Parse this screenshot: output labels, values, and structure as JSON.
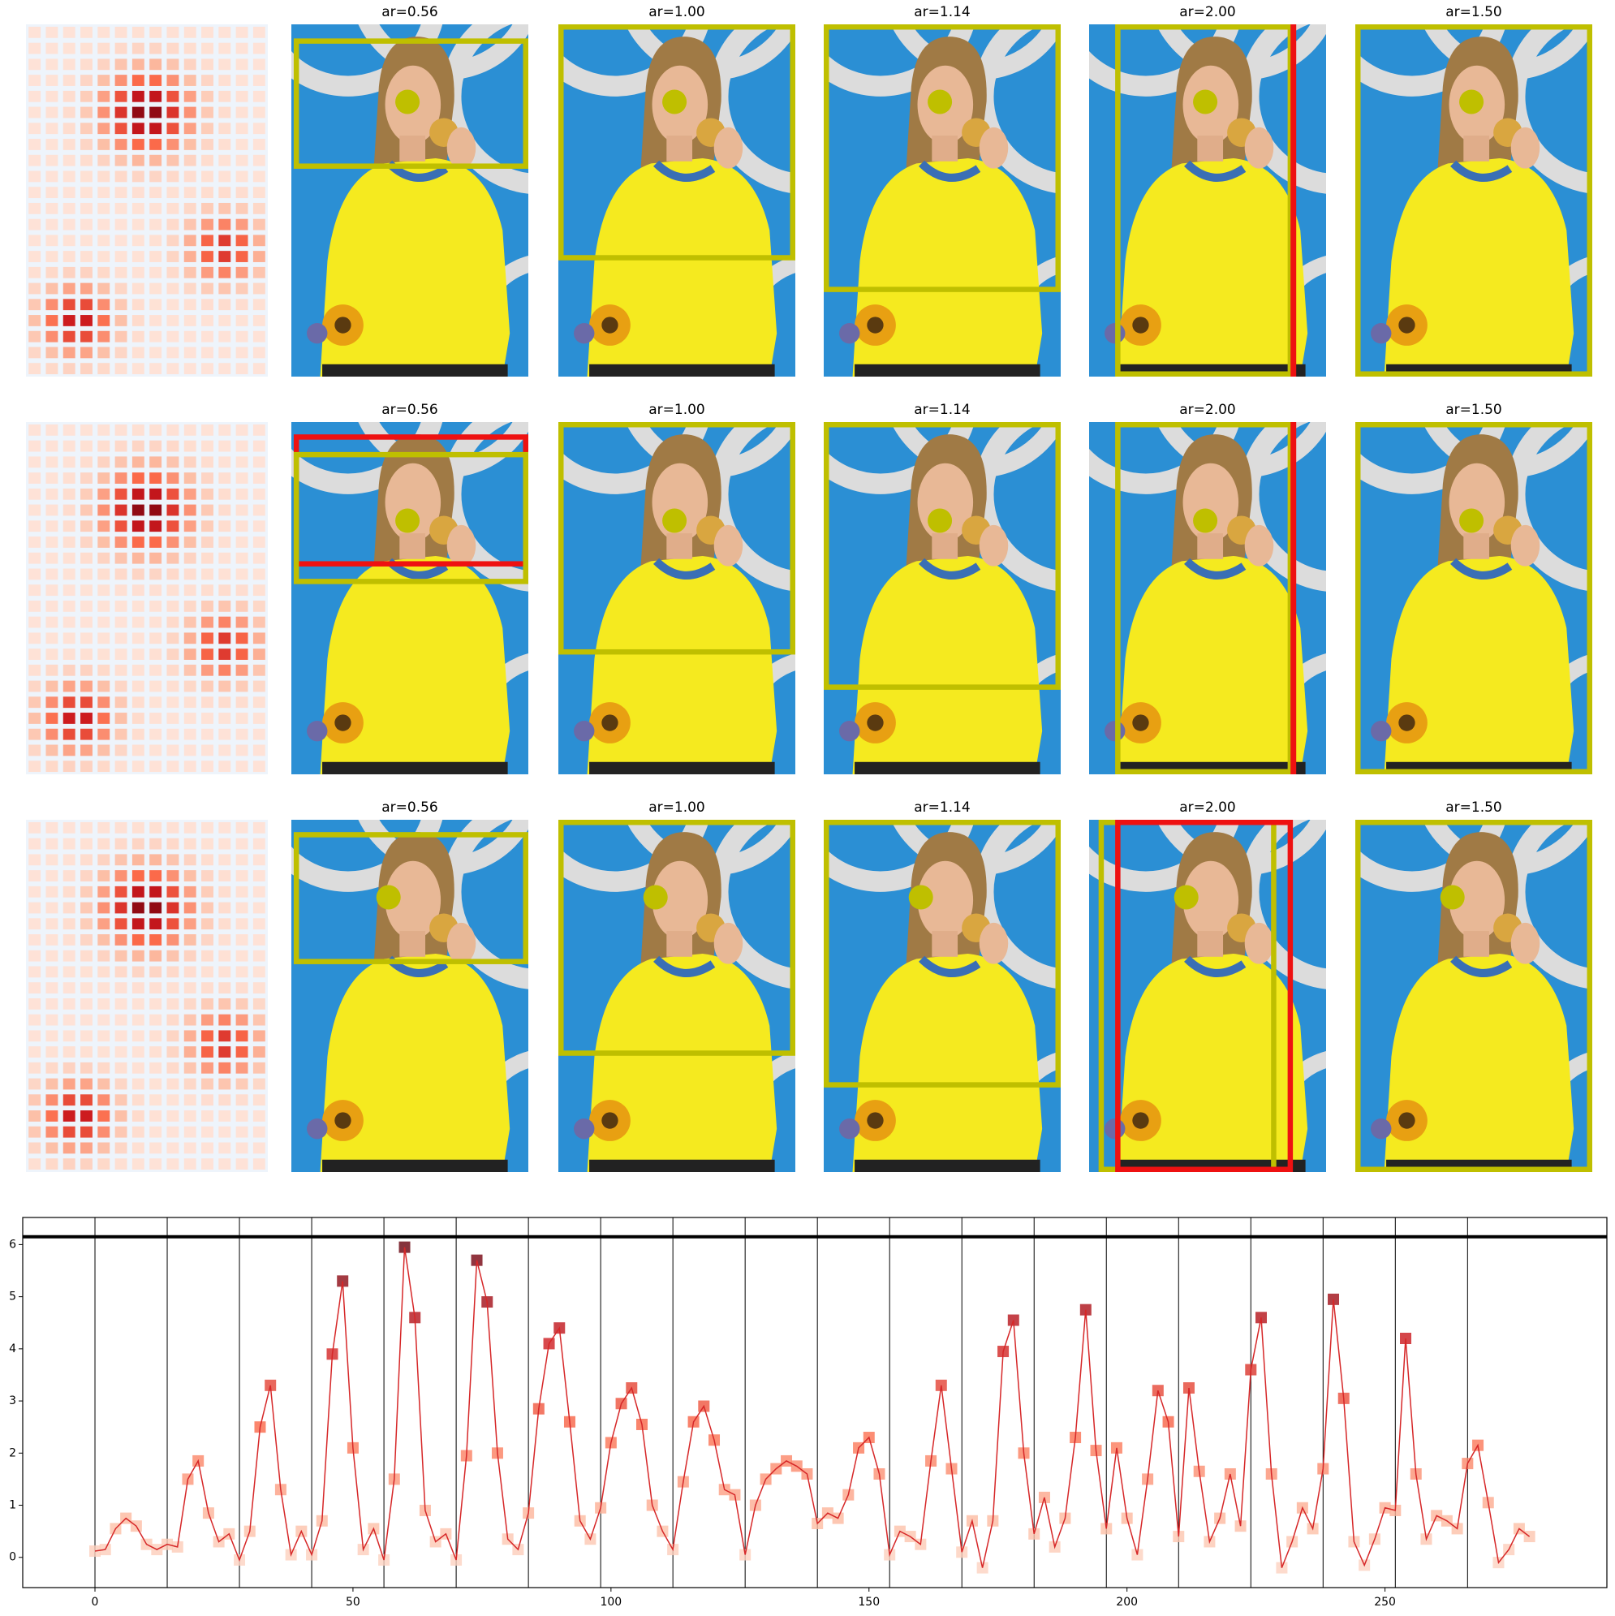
{
  "grid": {
    "rows": [
      {
        "titles": [
          "ar=0.56",
          "ar=1.00",
          "ar=1.14",
          "ar=2.00",
          "ar=1.50"
        ]
      },
      {
        "titles": [
          "ar=0.56",
          "ar=1.00",
          "ar=1.14",
          "ar=2.00",
          "ar=1.50"
        ]
      },
      {
        "titles": [
          "ar=0.56",
          "ar=1.00",
          "ar=1.14",
          "ar=2.00",
          "ar=1.50"
        ]
      }
    ]
  },
  "chart_data": {
    "type": "line",
    "x": [
      0,
      2,
      4,
      6,
      8,
      10,
      12,
      14,
      16,
      18,
      20,
      22,
      24,
      26,
      28,
      30,
      32,
      34,
      36,
      38,
      40,
      42,
      44,
      46,
      48,
      50,
      52,
      54,
      56,
      58,
      60,
      62,
      64,
      66,
      68,
      70,
      72,
      74,
      76,
      78,
      80,
      82,
      84,
      86,
      88,
      90,
      92,
      94,
      96,
      98,
      100,
      102,
      104,
      106,
      108,
      110,
      112,
      114,
      116,
      118,
      120,
      122,
      124,
      126,
      128,
      130,
      132,
      134,
      136,
      138,
      140,
      142,
      144,
      146,
      148,
      150,
      152,
      154,
      156,
      158,
      160,
      162,
      164,
      166,
      168,
      170,
      172,
      174,
      176,
      178,
      180,
      182,
      184,
      186,
      188,
      190,
      192,
      194,
      196,
      198,
      200,
      202,
      204,
      206,
      208,
      210,
      212,
      214,
      216,
      218,
      220,
      222,
      224,
      226,
      228,
      230,
      232,
      234,
      236,
      238,
      240,
      242,
      244,
      246,
      248,
      250,
      252,
      254,
      256,
      258,
      260,
      262,
      264,
      266,
      268,
      270,
      272,
      274,
      276,
      278
    ],
    "values": [
      0.12,
      0.15,
      0.55,
      0.75,
      0.6,
      0.25,
      0.15,
      0.25,
      0.2,
      1.5,
      1.85,
      0.85,
      0.3,
      0.45,
      -0.05,
      0.5,
      2.5,
      3.3,
      1.3,
      0.05,
      0.5,
      0.05,
      0.7,
      3.9,
      5.3,
      2.1,
      0.15,
      0.55,
      -0.05,
      1.5,
      5.95,
      4.6,
      0.9,
      0.3,
      0.45,
      -0.05,
      1.95,
      5.7,
      4.9,
      2.0,
      0.35,
      0.15,
      0.85,
      2.85,
      4.1,
      4.4,
      2.6,
      0.7,
      0.35,
      0.95,
      2.2,
      2.95,
      3.25,
      2.55,
      1.0,
      0.5,
      0.15,
      1.45,
      2.6,
      2.9,
      2.25,
      1.3,
      1.2,
      0.05,
      1.0,
      1.5,
      1.7,
      1.85,
      1.75,
      1.6,
      0.65,
      0.85,
      0.75,
      1.2,
      2.1,
      2.3,
      1.6,
      0.05,
      0.5,
      0.4,
      0.25,
      1.85,
      3.3,
      1.7,
      0.1,
      0.7,
      -0.2,
      0.7,
      3.95,
      4.55,
      2.0,
      0.45,
      1.15,
      0.2,
      0.75,
      2.3,
      4.75,
      2.05,
      0.55,
      2.1,
      0.75,
      0.05,
      1.5,
      3.2,
      2.6,
      0.4,
      3.25,
      1.65,
      0.3,
      0.75,
      1.6,
      0.6,
      3.6,
      4.6,
      1.6,
      -0.2,
      0.3,
      0.95,
      0.55,
      1.7,
      4.95,
      3.05,
      0.3,
      -0.15,
      0.35,
      0.95,
      0.9,
      4.2,
      1.6,
      0.35,
      0.8,
      0.7,
      0.55,
      1.8,
      2.15,
      1.05,
      -0.1,
      0.15,
      0.55,
      0.4
    ],
    "color": "#d62728",
    "vlines": [
      0,
      14,
      28,
      42,
      56,
      70,
      84,
      98,
      112,
      126,
      140,
      154,
      168,
      182,
      196,
      210,
      224,
      238,
      252,
      266
    ],
    "hline": 6.15,
    "xlim": [
      -14,
      293
    ],
    "ylim": [
      -0.58,
      6.52
    ],
    "xticks": [
      0,
      50,
      100,
      150,
      200,
      250
    ],
    "yticks": [
      0,
      1,
      2,
      3,
      4,
      5,
      6
    ],
    "grid": false
  }
}
